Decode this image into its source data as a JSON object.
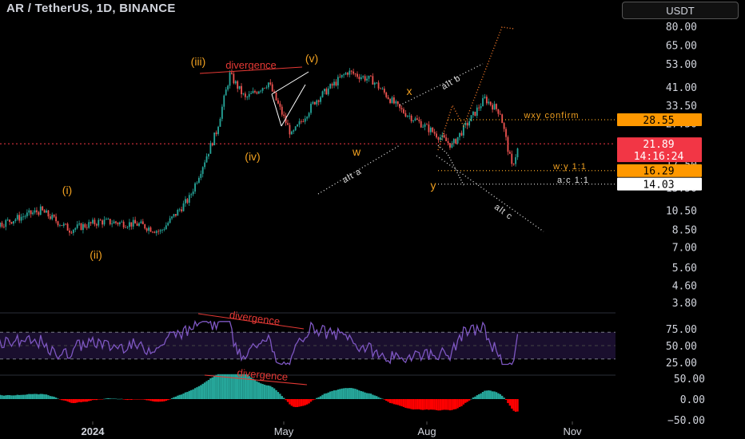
{
  "header": {
    "symbol_title": "AR / TetherUS, 1D, BINANCE",
    "currency_button": "USDT"
  },
  "price_axis": {
    "ticks": [
      "80.00",
      "65.00",
      "53.00",
      "41.00",
      "33.50",
      "27.50",
      "21.50",
      "17.50",
      "13.50",
      "10.50",
      "8.50",
      "7.00",
      "5.60",
      "4.60",
      "3.80"
    ]
  },
  "price_tags": [
    {
      "label": "28.55",
      "bg": "#ff9800",
      "fg": "#000000"
    },
    {
      "label": "21.89",
      "bg": "#f23645",
      "fg": "#ffffff"
    },
    {
      "label": "14:16:24",
      "bg": "#f23645",
      "fg": "#ffffff"
    },
    {
      "label": "16.29",
      "bg": "#ff9800",
      "fg": "#000000"
    },
    {
      "label": "14.03",
      "bg": "#ffffff",
      "fg": "#000000"
    }
  ],
  "rsi_axis": {
    "ticks": [
      "75.00",
      "50.00",
      "25.00"
    ]
  },
  "macd_axis": {
    "ticks": [
      "50.00",
      "0.00",
      "−50.00"
    ]
  },
  "time_axis": {
    "labels": [
      {
        "text": "2024",
        "bold": true
      },
      {
        "text": "May",
        "bold": false
      },
      {
        "text": "Aug",
        "bold": false
      },
      {
        "text": "Nov",
        "bold": false
      }
    ]
  },
  "annotations": {
    "wave_labels": [
      "(i)",
      "(ii)",
      "(iii)",
      "(iv)",
      "(v)",
      "w",
      "x",
      "y"
    ],
    "divergence_price": "divergence",
    "divergence_rsi": "divergence",
    "divergence_macd": "divergence",
    "wxy_confirm": "wxy confirm",
    "wy_ratio": "w:y 1:1",
    "ac_ratio": "a:c 1:1",
    "alt_a": "alt a",
    "alt_b": "alt b",
    "alt_c": "alt c"
  },
  "colors": {
    "up": "#26a69a",
    "down": "#ef5350",
    "rsi_line": "#7e57c2",
    "wave_orange": "#f0a020",
    "projection": "#ff7f2a",
    "macd_up": "#26a69a",
    "macd_down": "#ff0000"
  },
  "chart_data": {
    "type": "candlestick",
    "scale": "log",
    "interval": "1D",
    "ylim": [
      3.8,
      80.0
    ],
    "anchor_points": [
      {
        "date": "2023-10-01",
        "close": 6.3
      },
      {
        "date": "2023-10-25",
        "close": 8.5
      },
      {
        "date": "2023-11-15",
        "close": 9.1
      },
      {
        "date": "2023-12-05",
        "close": 10.5
      },
      {
        "date": "2023-12-20",
        "close": 8.5
      },
      {
        "date": "2024-01-05",
        "close": 9.3
      },
      {
        "date": "2024-01-25",
        "close": 9.0
      },
      {
        "date": "2024-02-05",
        "close": 8.3
      },
      {
        "date": "2024-02-20",
        "close": 12.0
      },
      {
        "date": "2024-03-05",
        "close": 25.0
      },
      {
        "date": "2024-03-12",
        "close": 47.0
      },
      {
        "date": "2024-03-20",
        "close": 36.0
      },
      {
        "date": "2024-04-01",
        "close": 43.0
      },
      {
        "date": "2024-04-13",
        "close": 24.0
      },
      {
        "date": "2024-04-25",
        "close": 35.0
      },
      {
        "date": "2024-05-12",
        "close": 48.5
      },
      {
        "date": "2024-05-25",
        "close": 44.0
      },
      {
        "date": "2024-06-08",
        "close": 32.0
      },
      {
        "date": "2024-06-20",
        "close": 27.0
      },
      {
        "date": "2024-07-05",
        "close": 21.5
      },
      {
        "date": "2024-07-22",
        "close": 36.0
      },
      {
        "date": "2024-07-30",
        "close": 31.0
      },
      {
        "date": "2024-08-05",
        "close": 17.0
      },
      {
        "date": "2024-08-09",
        "close": 21.89
      }
    ],
    "levels": {
      "wxy_confirm": 28.55,
      "last_price": 21.89,
      "wy_1_1": 16.29,
      "ac_1_1": 14.03
    },
    "rsi": {
      "ylim": [
        15,
        90
      ],
      "bands": [
        70,
        30
      ],
      "level_marks": [
        75,
        50,
        25
      ]
    },
    "macd": {
      "ylim": [
        -65,
        65
      ]
    }
  }
}
